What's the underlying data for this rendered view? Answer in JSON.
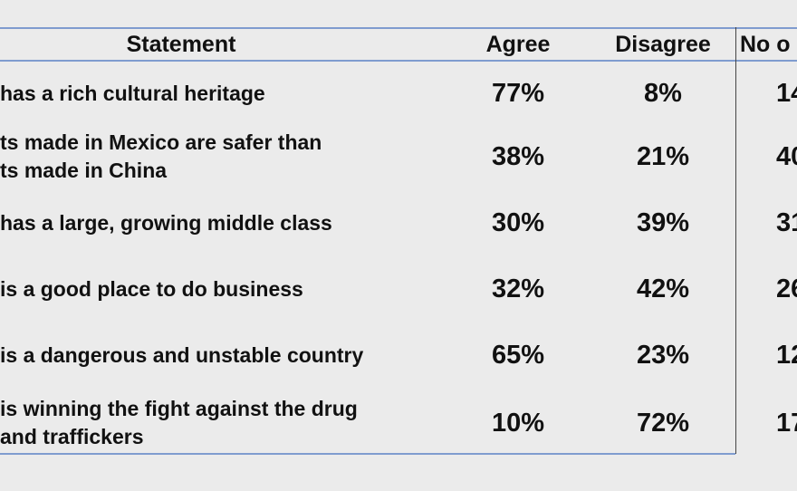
{
  "chart_data": {
    "type": "table",
    "columns": [
      "Statement",
      "Agree",
      "Disagree",
      "No o"
    ],
    "rows": [
      {
        "statement": [
          "has a rich cultural heritage"
        ],
        "agree": "77%",
        "disagree": "8%",
        "no_opinion": "14"
      },
      {
        "statement": [
          "ts made in Mexico are safer than",
          "ts made in China"
        ],
        "agree": "38%",
        "disagree": "21%",
        "no_opinion": "40"
      },
      {
        "statement": [
          "has a large, growing middle class"
        ],
        "agree": "30%",
        "disagree": "39%",
        "no_opinion": "31"
      },
      {
        "statement": [
          "is a good place to do business"
        ],
        "agree": "32%",
        "disagree": "42%",
        "no_opinion": "26"
      },
      {
        "statement": [
          "is a dangerous and unstable country"
        ],
        "agree": "65%",
        "disagree": "23%",
        "no_opinion": "12"
      },
      {
        "statement": [
          "is winning the fight against the drug",
          "and traffickers"
        ],
        "agree": "10%",
        "disagree": "72%",
        "no_opinion": "17"
      }
    ]
  },
  "colors": {
    "background": "#ebebeb",
    "rule": "#7f9ccf",
    "divider": "#444444",
    "text": "#111111"
  }
}
